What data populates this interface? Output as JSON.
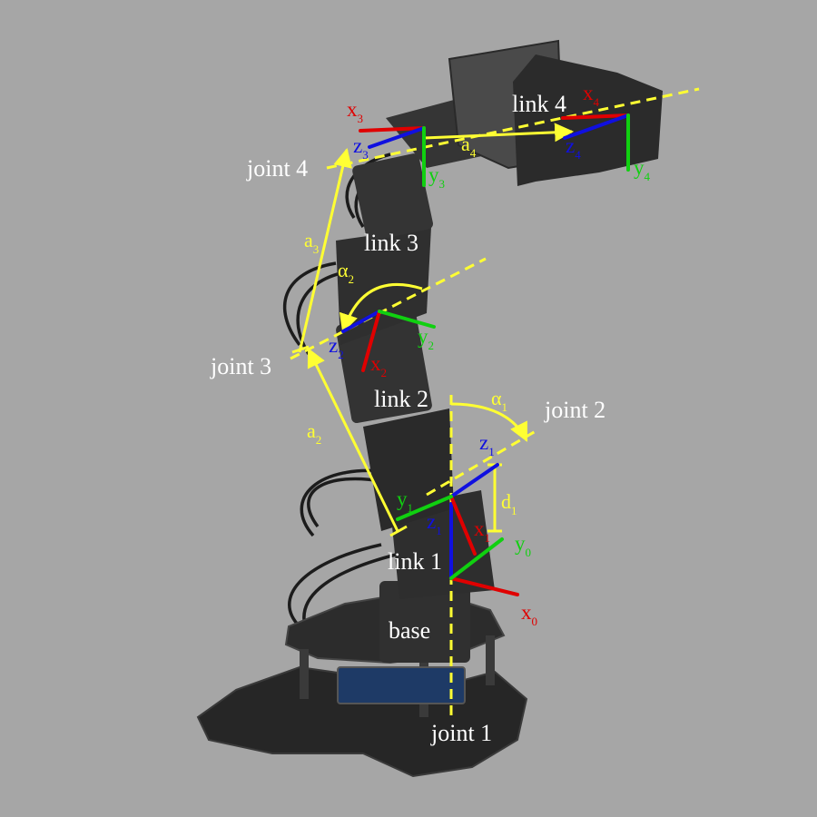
{
  "joints": {
    "joint1": "joint 1",
    "joint2": "joint 2",
    "joint3": "joint 3",
    "joint4": "joint 4"
  },
  "links": {
    "base": "base",
    "link1": "link 1",
    "link2": "link 2",
    "link3": "link 3",
    "link4": "link 4"
  },
  "frames": {
    "frame0": {
      "x": "x",
      "x_sub": "0",
      "y": "y",
      "y_sub": "0"
    },
    "frame1": {
      "x": "x",
      "x_sub": "1",
      "y": "y",
      "y_sub": "1",
      "z": "z",
      "z_sub": "1",
      "z_inner": "z",
      "z_inner_sub": "1"
    },
    "frame2": {
      "x": "x",
      "x_sub": "2",
      "y": "y",
      "y_sub": "2",
      "z": "z",
      "z_sub": "2"
    },
    "frame3": {
      "x": "x",
      "x_sub": "3",
      "y": "y",
      "y_sub": "3",
      "z": "z",
      "z_sub": "3"
    },
    "frame4": {
      "x": "x",
      "x_sub": "4",
      "y": "y",
      "y_sub": "4",
      "z": "z",
      "z_sub": "4"
    }
  },
  "parameters": {
    "d1": {
      "sym": "d",
      "sub": "1"
    },
    "a2": {
      "sym": "a",
      "sub": "2"
    },
    "a3": {
      "sym": "a",
      "sub": "3"
    },
    "a4": {
      "sym": "a",
      "sub": "4"
    },
    "alpha1": {
      "sym": "α",
      "sub": "1"
    },
    "alpha2": {
      "sym": "α",
      "sub": "2"
    }
  },
  "colors": {
    "background": "#a6a6a6",
    "joint_axis": "#ffff33",
    "x_axis": "#e00000",
    "y_axis": "#10d010",
    "z_axis": "#1010e0",
    "label_text": "#ffffff",
    "robot_body": "#2a2a2a"
  }
}
